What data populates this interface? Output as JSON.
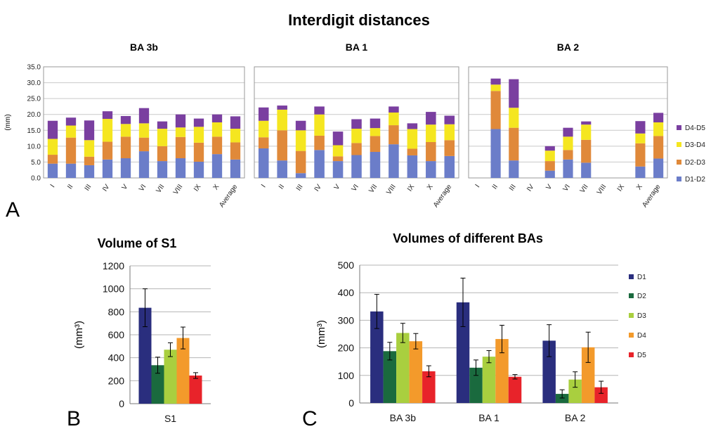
{
  "title": "Interdigit distances",
  "panel_letters": [
    "A",
    "B",
    "C"
  ],
  "chart_data": [
    {
      "type": "bar",
      "stacked": true,
      "title": "BA 3b",
      "ylabel": "(mm)",
      "ylim": [
        0,
        35
      ],
      "yticks": [
        "0.0",
        "5.0",
        "10.0",
        "15.0",
        "20.0",
        "25.0",
        "30.0",
        "35.0"
      ],
      "categories": [
        "I",
        "II",
        "III",
        "IV",
        "V",
        "VI",
        "VII",
        "VIII",
        "IX",
        "X",
        "Average"
      ],
      "series": [
        {
          "name": "D1-D2",
          "color": "#6b7dc9",
          "values": [
            4.5,
            4.5,
            4.0,
            5.8,
            6.2,
            8.4,
            5.3,
            6.2,
            5.1,
            7.5,
            5.8
          ]
        },
        {
          "name": "D2-D3",
          "color": "#e0893a",
          "values": [
            2.8,
            8.2,
            2.7,
            5.6,
            6.8,
            4.3,
            4.7,
            6.7,
            6.0,
            5.5,
            5.4
          ]
        },
        {
          "name": "D3-D4",
          "color": "#f5e620",
          "values": [
            5.0,
            3.8,
            5.2,
            7.2,
            4.0,
            4.5,
            5.5,
            3.0,
            5.0,
            4.5,
            4.3
          ]
        },
        {
          "name": "D4-D5",
          "color": "#7a3fa0",
          "values": [
            5.7,
            2.5,
            6.2,
            2.4,
            2.5,
            4.8,
            2.3,
            4.1,
            2.6,
            2.5,
            3.9
          ]
        }
      ],
      "legend": "none"
    },
    {
      "type": "bar",
      "stacked": true,
      "title": "BA 1",
      "categories": [
        "I",
        "II",
        "III",
        "IV",
        "V",
        "VI",
        "VII",
        "VIII",
        "IX",
        "X",
        "Average"
      ],
      "series": [
        {
          "name": "D1-D2",
          "color": "#6b7dc9",
          "values": [
            9.3,
            5.5,
            1.5,
            8.8,
            5.3,
            7.2,
            8.2,
            10.6,
            7.1,
            5.3,
            6.9
          ]
        },
        {
          "name": "D2-D3",
          "color": "#e0893a",
          "values": [
            3.5,
            9.5,
            7.0,
            4.5,
            1.5,
            3.8,
            5.0,
            6.0,
            2.1,
            6.0,
            5.0
          ]
        },
        {
          "name": "D3-D4",
          "color": "#f5e620",
          "values": [
            5.2,
            6.5,
            6.5,
            6.7,
            3.5,
            4.5,
            2.5,
            4.0,
            6.2,
            5.5,
            5.0
          ]
        },
        {
          "name": "D4-D5",
          "color": "#7a3fa0",
          "values": [
            4.2,
            1.3,
            3.0,
            2.5,
            4.3,
            3.0,
            3.0,
            1.9,
            1.8,
            4.0,
            2.7
          ]
        }
      ],
      "legend": "none"
    },
    {
      "type": "bar",
      "stacked": true,
      "title": "BA 2",
      "categories": [
        "I",
        "II",
        "III",
        "IV",
        "V",
        "VI",
        "VII",
        "VIII",
        "IX",
        "X",
        "Average"
      ],
      "series": [
        {
          "name": "D1-D2",
          "color": "#6b7dc9",
          "values": [
            0,
            15.4,
            5.5,
            0,
            2.3,
            5.8,
            4.8,
            0,
            0,
            3.6,
            6.1
          ]
        },
        {
          "name": "D2-D3",
          "color": "#e0893a",
          "values": [
            0,
            12.0,
            10.3,
            0,
            3.0,
            3.0,
            7.2,
            0,
            0,
            7.3,
            7.1
          ]
        },
        {
          "name": "D3-D4",
          "color": "#f5e620",
          "values": [
            0,
            2.0,
            6.3,
            0,
            3.3,
            4.2,
            4.8,
            0,
            0,
            3.1,
            4.3
          ]
        },
        {
          "name": "D4-D5",
          "color": "#7a3fa0",
          "values": [
            0,
            1.9,
            9.0,
            0,
            1.4,
            2.8,
            1.0,
            0,
            0,
            3.9,
            3.0
          ]
        }
      ],
      "legend": "right",
      "legend_order": [
        "D4-D5",
        "D3-D4",
        "D2-D3",
        "D1-D2"
      ]
    },
    {
      "type": "bar",
      "title": "Volume of S1",
      "ylabel": "(mm³)",
      "ylim": [
        0,
        1200
      ],
      "yticks": [
        "0",
        "200",
        "400",
        "600",
        "800",
        "1000",
        "1200"
      ],
      "categories": [
        "S1"
      ],
      "series": [
        {
          "name": "D1",
          "color": "#2a2e7e",
          "values": [
            835
          ],
          "errors": [
            165
          ]
        },
        {
          "name": "D2",
          "color": "#1a6a3e",
          "values": [
            335
          ],
          "errors": [
            70
          ]
        },
        {
          "name": "D3",
          "color": "#a9cf3f",
          "values": [
            470
          ],
          "errors": [
            60
          ]
        },
        {
          "name": "D4",
          "color": "#f39a2b",
          "values": [
            572
          ],
          "errors": [
            95
          ]
        },
        {
          "name": "D5",
          "color": "#e8232a",
          "values": [
            245
          ],
          "errors": [
            25
          ]
        }
      ],
      "legend": "none"
    },
    {
      "type": "bar",
      "title": "Volumes of different BAs",
      "ylabel": "(mm³)",
      "ylim": [
        0,
        500
      ],
      "yticks": [
        "0",
        "100",
        "200",
        "300",
        "400",
        "500"
      ],
      "categories": [
        "BA 3b",
        "BA 1",
        "BA 2"
      ],
      "series": [
        {
          "name": "D1",
          "color": "#2a2e7e",
          "values": [
            332,
            365,
            226
          ],
          "errors": [
            62,
            88,
            58
          ]
        },
        {
          "name": "D2",
          "color": "#1a6a3e",
          "values": [
            188,
            128,
            33
          ],
          "errors": [
            32,
            28,
            15
          ]
        },
        {
          "name": "D3",
          "color": "#a9cf3f",
          "values": [
            254,
            168,
            85
          ],
          "errors": [
            35,
            22,
            28
          ]
        },
        {
          "name": "D4",
          "color": "#f39a2b",
          "values": [
            224,
            232,
            202
          ],
          "errors": [
            28,
            50,
            55
          ]
        },
        {
          "name": "D5",
          "color": "#e8232a",
          "values": [
            115,
            95,
            57
          ],
          "errors": [
            20,
            8,
            22
          ]
        }
      ],
      "legend": "right",
      "legend_order": [
        "D1",
        "D2",
        "D3",
        "D4",
        "D5"
      ]
    }
  ]
}
